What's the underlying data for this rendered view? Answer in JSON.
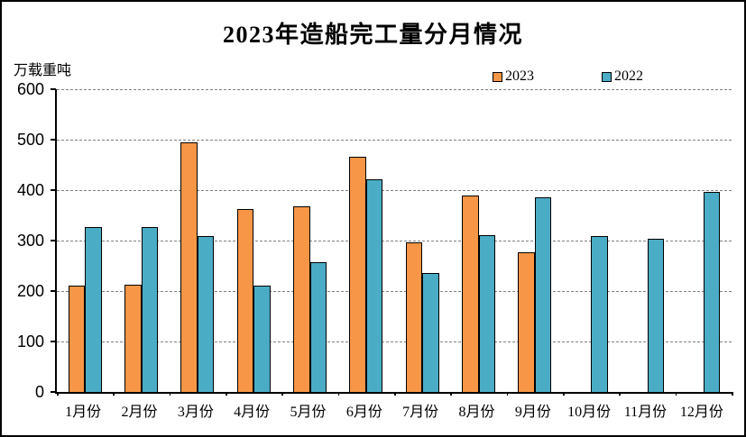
{
  "window": {
    "background_color": "#ffffff",
    "frame_border_color": "#000000"
  },
  "chart_data": {
    "type": "bar",
    "title": "2023年造船完工量分月情况",
    "ylabel": "万载重吨",
    "xlabel": "",
    "categories": [
      "1月份",
      "2月份",
      "3月份",
      "4月份",
      "5月份",
      "6月份",
      "7月份",
      "8月份",
      "9月份",
      "10月份",
      "11月份",
      "12月份"
    ],
    "series": [
      {
        "name": "2023",
        "color": "#F79646",
        "values": [
          211,
          212,
          495,
          363,
          368,
          466,
          296,
          390,
          277,
          null,
          null,
          null
        ]
      },
      {
        "name": "2022",
        "color": "#4BACC6",
        "values": [
          326,
          327,
          309,
          210,
          257,
          422,
          236,
          310,
          386,
          309,
          304,
          397
        ]
      }
    ],
    "ylim": [
      0,
      600
    ],
    "ytick_step": 100,
    "yticks": [
      0,
      100,
      200,
      300,
      400,
      500,
      600
    ],
    "grid": true,
    "gridline_color": "#808080",
    "bar_border_color": "#000000",
    "legend_position": "top"
  }
}
